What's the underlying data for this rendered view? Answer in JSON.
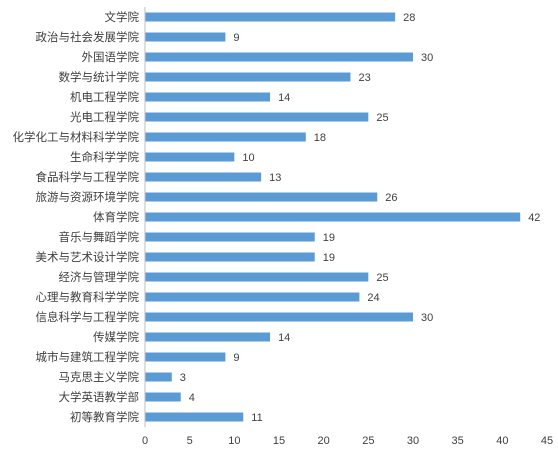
{
  "chart_data": {
    "type": "bar",
    "orientation": "horizontal",
    "title": "",
    "xlabel": "",
    "ylabel": "",
    "xlim": [
      0,
      45
    ],
    "x_ticks": [
      0,
      5,
      10,
      15,
      20,
      25,
      30,
      35,
      40,
      45
    ],
    "grid": false,
    "legend": "none",
    "bar_color": "#5b9bd5",
    "categories": [
      "文学院",
      "政治与社会发展学院",
      "外国语学院",
      "数学与统计学院",
      "机电工程学院",
      "光电工程学院",
      "化学化工与材料科学学院",
      "生命科学学院",
      "食品科学与工程学院",
      "旅游与资源环境学院",
      "体育学院",
      "音乐与舞蹈学院",
      "美术与艺术设计学院",
      "经济与管理学院",
      "心理与教育科学学院",
      "信息科学与工程学院",
      "传媒学院",
      "城市与建筑工程学院",
      "马克思主义学院",
      "大学英语教学部",
      "初等教育学院"
    ],
    "values": [
      28,
      9,
      30,
      23,
      14,
      25,
      18,
      10,
      13,
      26,
      42,
      19,
      19,
      25,
      24,
      30,
      14,
      9,
      3,
      4,
      11
    ]
  }
}
